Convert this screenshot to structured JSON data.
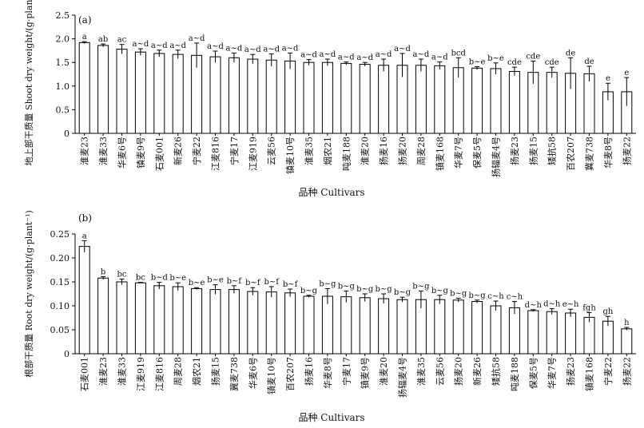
{
  "chart_data": [
    {
      "panel": "(a)",
      "type": "bar",
      "ylabel": "地上部干质量 Shoot dry weight/(g·plant⁻¹)",
      "xlabel": "品种 Cultivars",
      "ylim": [
        0,
        2.5
      ],
      "yticks": [
        "0",
        "0.5",
        "1.0",
        "1.5",
        "2.0",
        "2.5"
      ],
      "categories": [
        "淮麦23",
        "淮麦33",
        "华麦6号",
        "镇麦9号",
        "石麦001",
        "新麦26",
        "宁麦22",
        "江麦816",
        "宁麦17",
        "江麦919",
        "云麦56",
        "镇麦10号",
        "淮麦35",
        "烟农21",
        "吨麦188",
        "淮麦20",
        "扬麦16",
        "扬麦20",
        "周麦28",
        "镇麦168",
        "华麦7号",
        "保麦5号",
        "扬辐麦4号",
        "扬麦23",
        "扬麦15",
        "矮抗58",
        "百农207",
        "冀麦738",
        "华麦8号",
        "扬麦22"
      ],
      "values": [
        1.92,
        1.86,
        1.78,
        1.72,
        1.69,
        1.67,
        1.65,
        1.62,
        1.6,
        1.57,
        1.55,
        1.53,
        1.5,
        1.5,
        1.48,
        1.46,
        1.44,
        1.44,
        1.44,
        1.43,
        1.39,
        1.38,
        1.37,
        1.31,
        1.29,
        1.29,
        1.27,
        1.26,
        0.88,
        0.88
      ],
      "errors": [
        0.02,
        0.03,
        0.1,
        0.07,
        0.07,
        0.09,
        0.26,
        0.12,
        0.1,
        0.1,
        0.13,
        0.17,
        0.06,
        0.07,
        0.03,
        0.04,
        0.13,
        0.25,
        0.13,
        0.08,
        0.21,
        0.03,
        0.12,
        0.09,
        0.24,
        0.11,
        0.33,
        0.16,
        0.18,
        0.3
      ],
      "letters": [
        "a",
        "ab",
        "ac",
        "a~d",
        "a~d",
        "a~d",
        "a~d",
        "a~d",
        "a~d",
        "a~d",
        "a~d",
        "a~d",
        "a~d",
        "a~d",
        "a~d",
        "a~d",
        "a~d",
        "a~d",
        "a~d",
        "a~d",
        "bcd",
        "b~e",
        "b~e",
        "cde",
        "cde",
        "cde",
        "de",
        "de",
        "e",
        "e"
      ]
    },
    {
      "panel": "(b)",
      "type": "bar",
      "ylabel": "根部干质量 Root dry weight/(g·plant⁻¹)",
      "xlabel": "品种 Cultivars",
      "ylim": [
        0,
        0.25
      ],
      "yticks": [
        "0",
        "0.05",
        "0.10",
        "0.15",
        "0.20",
        "0.25"
      ],
      "categories": [
        "石麦001",
        "淮麦23",
        "淮麦33",
        "江麦919",
        "江麦816",
        "周麦28",
        "烟农21",
        "扬麦15",
        "冀麦738",
        "华麦6号",
        "镇麦10号",
        "百农207",
        "扬麦16",
        "华麦8号",
        "宁麦17",
        "镇麦9号",
        "淮麦20",
        "扬辐麦4号",
        "淮麦35",
        "云麦56",
        "扬麦20",
        "新麦26",
        "矮抗58",
        "吨麦188",
        "保麦5号",
        "华麦7号",
        "扬麦23",
        "镇麦168",
        "宁麦22",
        "扬麦22"
      ],
      "values": [
        0.224,
        0.158,
        0.15,
        0.148,
        0.142,
        0.14,
        0.136,
        0.134,
        0.134,
        0.13,
        0.129,
        0.127,
        0.12,
        0.12,
        0.119,
        0.117,
        0.115,
        0.113,
        0.113,
        0.113,
        0.112,
        0.109,
        0.1,
        0.096,
        0.09,
        0.088,
        0.085,
        0.076,
        0.068,
        0.052
      ],
      "errors": [
        0.012,
        0.003,
        0.006,
        0.001,
        0.007,
        0.008,
        0.002,
        0.01,
        0.008,
        0.008,
        0.011,
        0.008,
        0.002,
        0.016,
        0.012,
        0.008,
        0.01,
        0.005,
        0.018,
        0.009,
        0.004,
        0.003,
        0.01,
        0.013,
        0.002,
        0.006,
        0.008,
        0.01,
        0.01,
        0.003
      ],
      "letters": [
        "a",
        "b",
        "bc",
        "bc",
        "b~d",
        "b~e",
        "b~e",
        "b~e",
        "b~f",
        "b~f",
        "b~f",
        "b~f",
        "b~g",
        "b~g",
        "b~g",
        "b~g",
        "b~g",
        "b~g",
        "b~g",
        "b~g",
        "b~g",
        "b~g",
        "c~h",
        "c~h",
        "d~h",
        "d~h",
        "e~h",
        "fgh",
        "gh",
        "h"
      ]
    }
  ]
}
